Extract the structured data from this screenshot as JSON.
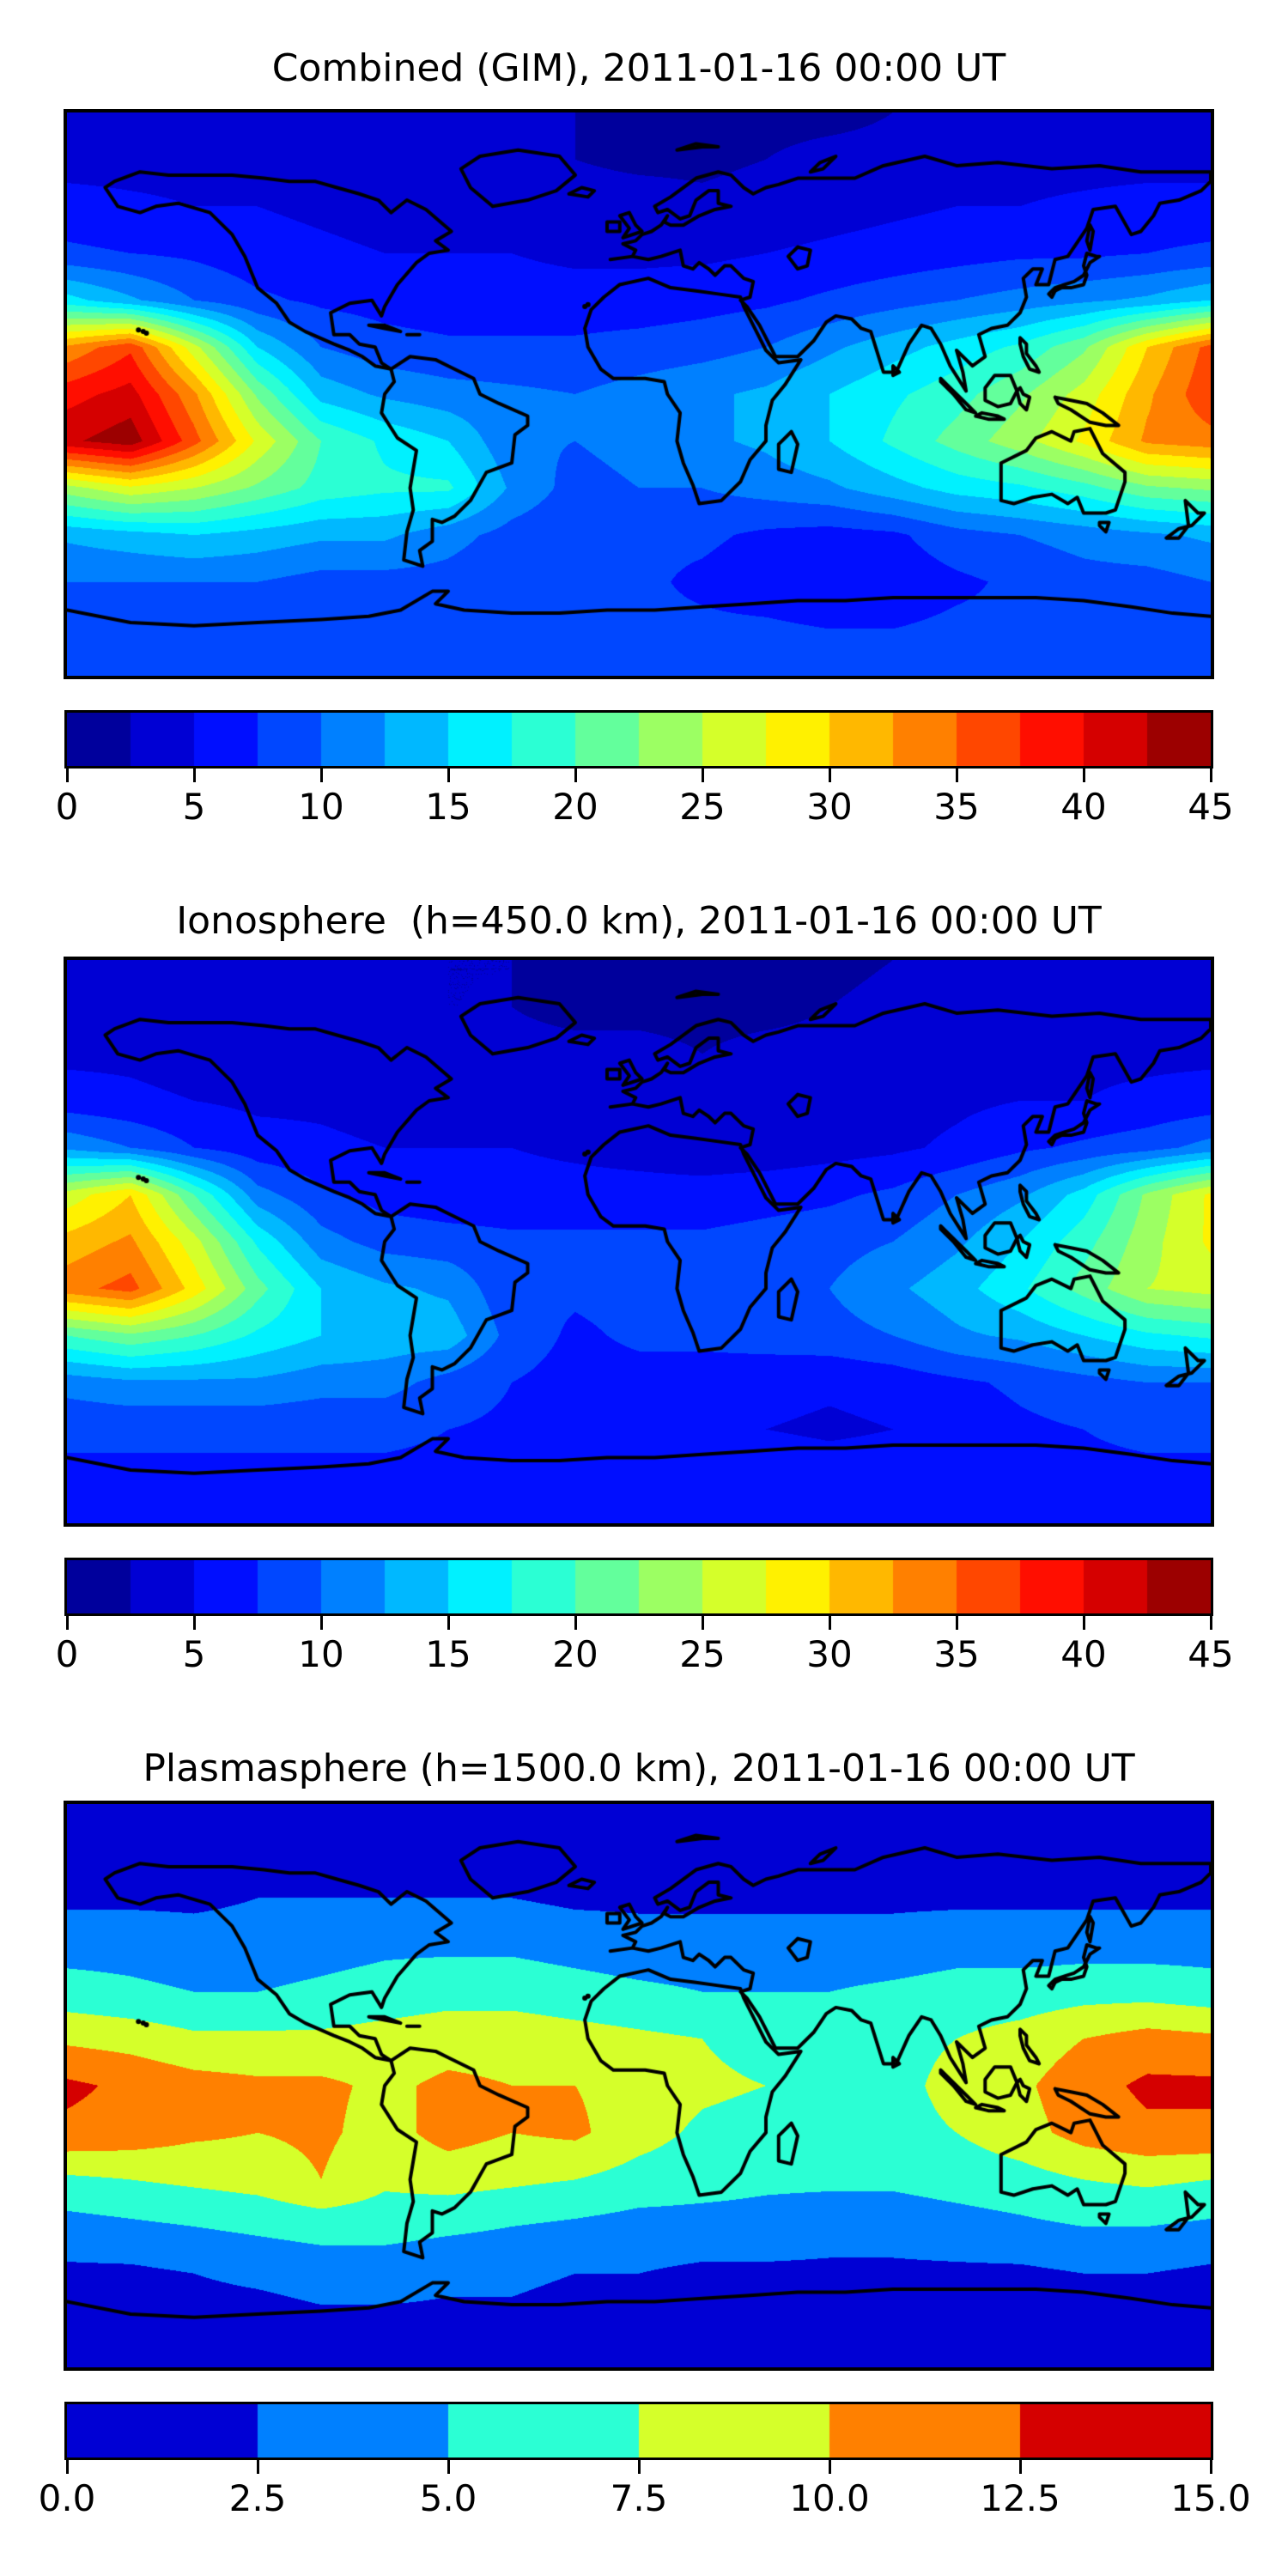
{
  "figure": {
    "kind": "matplotlib-style geophysical TEC maps",
    "background": "#ffffff",
    "accent_colormap": "jet",
    "border_color": "#000000"
  },
  "chart_data": [
    {
      "type": "heatmap",
      "subtype": "filled_contour_world_map",
      "title": "Combined (GIM), 2011-01-16 00:00 UT",
      "xlabel": "",
      "ylabel": "",
      "x_range_lon": [
        -180,
        180
      ],
      "y_range_lat": [
        -90,
        90
      ],
      "levels": {
        "min": 0,
        "max": 45,
        "step": 2.5
      },
      "colormap": "jet",
      "colorbar_ticks": [
        "0",
        "5",
        "10",
        "15",
        "20",
        "25",
        "30",
        "35",
        "40",
        "45"
      ],
      "colorbar_tick_values": [
        0,
        5,
        10,
        15,
        20,
        25,
        30,
        35,
        40,
        45
      ],
      "x": [
        -180,
        -160,
        -140,
        -120,
        -100,
        -80,
        -60,
        -40,
        -20,
        0,
        20,
        40,
        60,
        80,
        100,
        120,
        140,
        160,
        180
      ],
      "y": [
        90,
        75,
        60,
        45,
        30,
        15,
        0,
        -15,
        -30,
        -45,
        -60,
        -75,
        -90
      ],
      "values": [
        [
          3,
          3,
          3,
          3,
          3,
          3,
          3,
          2.5,
          2.5,
          2,
          2,
          2,
          2,
          2.5,
          2.5,
          3,
          3,
          3,
          3
        ],
        [
          4,
          4,
          4,
          4,
          3.5,
          3.5,
          3,
          3,
          2.5,
          2,
          2,
          2.5,
          3,
          3,
          3.5,
          4,
          4,
          4,
          4
        ],
        [
          6,
          5.5,
          5,
          5,
          4.5,
          4,
          4,
          4,
          3.5,
          3.5,
          3,
          3.5,
          4,
          4.5,
          5,
          5,
          5.5,
          6,
          6
        ],
        [
          8,
          7.5,
          7,
          6,
          5.5,
          5,
          5,
          5,
          4.5,
          4.5,
          4.5,
          5,
          5.5,
          6,
          6.5,
          7,
          7,
          7.5,
          8
        ],
        [
          16,
          13,
          10,
          8,
          7,
          6.5,
          6,
          6,
          6,
          6,
          6.5,
          7,
          8,
          9,
          10,
          11,
          12,
          13,
          15
        ],
        [
          33,
          37,
          26,
          15,
          10,
          8.5,
          8,
          8,
          8,
          8.5,
          9,
          10,
          12,
          14,
          16,
          18,
          22,
          30,
          36
        ],
        [
          39,
          41,
          33,
          22,
          14,
          12,
          11,
          10.5,
          10,
          11,
          12,
          13,
          15,
          17,
          19,
          22,
          26,
          32,
          37
        ],
        [
          42,
          44,
          36,
          27,
          20,
          17,
          15,
          10.5,
          10,
          11,
          12,
          13,
          15,
          18,
          21,
          24,
          28,
          33,
          34
        ],
        [
          24,
          27,
          25,
          22,
          19,
          18,
          18,
          12,
          9,
          10,
          10,
          11,
          12,
          14,
          16,
          17,
          19,
          22,
          23
        ],
        [
          13,
          14,
          15,
          14,
          13,
          13,
          11,
          9,
          8,
          8,
          8,
          7,
          6.5,
          7,
          9,
          10,
          11,
          12,
          13
        ],
        [
          10,
          10,
          10,
          10,
          9,
          9,
          9,
          8,
          8,
          8,
          7,
          6,
          5,
          6,
          7,
          8,
          9,
          9,
          10
        ],
        [
          8,
          8,
          8,
          8,
          8,
          8,
          8,
          8,
          8,
          8,
          8,
          8,
          7.5,
          7.5,
          8,
          8,
          8,
          8,
          8
        ],
        [
          8,
          8,
          8,
          8,
          8,
          8,
          8,
          8,
          8,
          8,
          8,
          8,
          8,
          8,
          8,
          8,
          8,
          8,
          8
        ]
      ]
    },
    {
      "type": "heatmap",
      "subtype": "filled_contour_world_map",
      "title": "Ionosphere  (h=450.0 km), 2011-01-16 00:00 UT",
      "xlabel": "",
      "ylabel": "",
      "x_range_lon": [
        -180,
        180
      ],
      "y_range_lat": [
        -90,
        90
      ],
      "levels": {
        "min": 0,
        "max": 45,
        "step": 2.5
      },
      "colormap": "jet",
      "colorbar_ticks": [
        "0",
        "5",
        "10",
        "15",
        "20",
        "25",
        "30",
        "35",
        "40",
        "45"
      ],
      "colorbar_tick_values": [
        0,
        5,
        10,
        15,
        20,
        25,
        30,
        35,
        40,
        45
      ],
      "x": [
        -180,
        -160,
        -140,
        -120,
        -100,
        -80,
        -60,
        -40,
        -20,
        0,
        20,
        40,
        60,
        80,
        100,
        120,
        140,
        160,
        180
      ],
      "y": [
        90,
        75,
        60,
        45,
        30,
        15,
        0,
        -15,
        -30,
        -45,
        -60,
        -75,
        -90
      ],
      "values": [
        [
          3,
          3,
          3,
          3,
          3,
          3,
          2.5,
          2.5,
          2,
          2,
          2,
          2,
          2,
          2.5,
          2.5,
          3,
          3,
          3,
          3
        ],
        [
          3.5,
          3.5,
          3.5,
          3.5,
          3,
          3,
          2.5,
          2.5,
          2,
          2,
          2,
          2,
          2.5,
          3,
          3,
          3.5,
          3.5,
          3.5,
          3.5
        ],
        [
          4.5,
          4.5,
          4,
          4,
          3.5,
          3.5,
          3.5,
          3,
          3,
          3,
          2.5,
          3,
          3,
          3.5,
          4,
          4,
          4.5,
          4.5,
          4.5
        ],
        [
          6,
          5.5,
          5,
          4.5,
          4.5,
          4,
          4.5,
          4.5,
          4,
          3.5,
          3,
          3,
          3.5,
          4,
          4.5,
          5,
          5,
          5.5,
          6
        ],
        [
          12,
          10,
          7.5,
          6,
          5.5,
          5,
          5,
          5,
          4.5,
          4,
          3.5,
          3.5,
          4,
          4.5,
          5.5,
          7,
          8,
          9,
          11
        ],
        [
          26,
          30,
          20,
          11,
          8,
          6.5,
          6,
          6,
          6,
          6,
          6,
          6.5,
          7,
          8,
          10,
          12,
          16,
          23,
          28
        ],
        [
          31,
          33,
          26,
          17,
          11,
          9,
          8.5,
          8,
          8,
          8,
          8,
          8.5,
          9,
          10,
          12,
          15,
          19,
          24,
          28
        ],
        [
          34,
          36,
          29,
          21,
          15,
          13,
          12,
          8,
          8,
          8.5,
          9,
          9.5,
          10,
          12,
          14,
          17,
          21,
          25,
          26
        ],
        [
          20,
          22,
          20,
          17,
          15,
          14,
          14,
          9,
          7,
          8,
          8,
          8.5,
          9,
          10,
          12,
          13,
          15,
          17,
          18
        ],
        [
          11,
          12,
          12,
          12,
          11,
          11,
          9,
          7.5,
          6.5,
          6.5,
          6.5,
          6,
          5.5,
          6,
          7,
          8,
          9,
          10,
          10
        ],
        [
          8,
          8,
          8,
          8,
          8,
          8,
          7.5,
          7,
          6.5,
          6.5,
          6,
          5,
          4.5,
          5,
          6,
          7,
          7.5,
          8,
          8
        ],
        [
          7,
          7,
          7,
          7,
          7,
          7,
          7,
          7,
          7,
          7,
          7,
          7,
          6.5,
          6.5,
          7,
          7,
          7,
          7,
          7
        ],
        [
          7,
          7,
          7,
          7,
          7,
          7,
          7,
          7,
          7,
          7,
          7,
          7,
          7,
          7,
          7,
          7,
          7,
          7,
          7
        ]
      ]
    },
    {
      "type": "heatmap",
      "subtype": "filled_contour_world_map",
      "title": "Plasmasphere (h=1500.0 km), 2011-01-16 00:00 UT",
      "xlabel": "",
      "ylabel": "",
      "x_range_lon": [
        -180,
        180
      ],
      "y_range_lat": [
        -90,
        90
      ],
      "levels": {
        "min": 0,
        "max": 15,
        "step": 2.5
      },
      "colormap": "jet",
      "colorbar_ticks": [
        "0.0",
        "2.5",
        "5.0",
        "7.5",
        "10.0",
        "12.5",
        "15.0"
      ],
      "colorbar_tick_values": [
        0,
        2.5,
        5,
        7.5,
        10,
        12.5,
        15
      ],
      "x": [
        -180,
        -160,
        -140,
        -120,
        -100,
        -80,
        -60,
        -40,
        -20,
        0,
        20,
        40,
        60,
        80,
        100,
        120,
        140,
        160,
        180
      ],
      "y": [
        90,
        75,
        60,
        45,
        30,
        15,
        0,
        -15,
        -30,
        -45,
        -60,
        -75,
        -90
      ],
      "values": [
        [
          1,
          1,
          1,
          1,
          1,
          1,
          1,
          1,
          1,
          1,
          1,
          1,
          1,
          1,
          1,
          1,
          1,
          1,
          1
        ],
        [
          1.5,
          1.5,
          1.5,
          1.5,
          1.5,
          1.5,
          1.5,
          1.5,
          1.5,
          1.5,
          1.5,
          1.5,
          1.5,
          1.5,
          1.5,
          1.5,
          1.5,
          1.5,
          1.5
        ],
        [
          2,
          2,
          2,
          2.5,
          2.5,
          2.5,
          2.5,
          2.5,
          2,
          2,
          2,
          2,
          2,
          2,
          2,
          2,
          2,
          2,
          2
        ],
        [
          4,
          4,
          3.5,
          3.5,
          4,
          4.5,
          4.5,
          4.5,
          4,
          3.5,
          3.5,
          3.5,
          3.5,
          3.5,
          4,
          4,
          4,
          4,
          4
        ],
        [
          6,
          5.5,
          5,
          5,
          5.5,
          6,
          6.5,
          6.5,
          6,
          5.5,
          5,
          5,
          5,
          5.5,
          6,
          6,
          6.5,
          6.5,
          6
        ],
        [
          9.5,
          9,
          8,
          8,
          8,
          8.5,
          9,
          9,
          8.5,
          8,
          7.5,
          6.5,
          6.5,
          7,
          7.5,
          8.5,
          10,
          11,
          10.5
        ],
        [
          13,
          12,
          11,
          10.5,
          10.5,
          9.5,
          10.5,
          10,
          10,
          9,
          8,
          7.5,
          7,
          7,
          8,
          9.5,
          11.5,
          13,
          13
        ],
        [
          12,
          11.5,
          10.5,
          10,
          10.5,
          9,
          11,
          10,
          10.5,
          8.5,
          7,
          6.5,
          6.5,
          7,
          7.5,
          9,
          11,
          12,
          12
        ],
        [
          7,
          7.5,
          8,
          8.5,
          10,
          8,
          8.5,
          8,
          7.5,
          6.5,
          6,
          5.5,
          5.5,
          5.5,
          6,
          6.5,
          7.5,
          8,
          7.5
        ],
        [
          4,
          4.5,
          5,
          5.5,
          6,
          6,
          5.5,
          5,
          4.5,
          4,
          4,
          4,
          3.5,
          3.5,
          4,
          4.5,
          5,
          5,
          4.5
        ],
        [
          2,
          2,
          2.5,
          3,
          3.5,
          3.5,
          3,
          3,
          2.5,
          2.5,
          2,
          2,
          2,
          2,
          2,
          2,
          2.5,
          2.5,
          2
        ],
        [
          1.5,
          1.5,
          1.5,
          1.5,
          2,
          2,
          2,
          2,
          1.5,
          1.5,
          1.5,
          1.5,
          1.5,
          1.5,
          1.5,
          1.5,
          1.5,
          1.5,
          1.5
        ],
        [
          1,
          1,
          1,
          1,
          1,
          1,
          1,
          1,
          1,
          1,
          1,
          1,
          1,
          1,
          1,
          1,
          1,
          1,
          1
        ]
      ]
    }
  ]
}
